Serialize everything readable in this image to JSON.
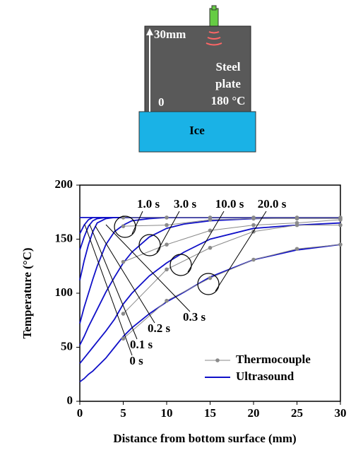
{
  "diagram": {
    "thickness_label": "30mm",
    "zero_label": "0",
    "plate_label_1": "Steel",
    "plate_label_2": "plate",
    "temp_label": "180 °C",
    "ice_label": "Ice"
  },
  "chart_data": {
    "type": "line",
    "y_label": "Temperature (°C)",
    "x_label": "Distance from bottom surface (mm)",
    "xlim": [
      0,
      30
    ],
    "xticks": [
      0,
      5,
      10,
      15,
      20,
      25,
      30
    ],
    "ylim": [
      0,
      200
    ],
    "yticks": [
      0,
      50,
      100,
      150,
      200
    ],
    "legend": "lower-right",
    "annotations": [
      "1.0 s",
      "3.0 s",
      "10.0 s",
      "20.0 s",
      "0.3 s",
      "0.2 s",
      "0.1 s",
      "0 s"
    ],
    "thermocouple": {
      "name": "Thermocouple",
      "color": "#8a8a8a",
      "x": [
        5,
        10,
        15,
        20,
        25,
        30
      ],
      "series": [
        {
          "values": [
            170,
            170,
            170,
            170,
            170,
            170
          ]
        },
        {
          "values": [
            162,
            163,
            168,
            169,
            169,
            169
          ]
        },
        {
          "values": [
            129,
            145,
            158,
            163,
            165,
            168
          ]
        },
        {
          "values": [
            81,
            122,
            142,
            157,
            163,
            163
          ]
        },
        {
          "values": [
            58,
            93,
            114,
            131,
            141,
            145
          ]
        }
      ]
    },
    "ultrasound": {
      "name": "Ultrasound",
      "color": "#1010c8",
      "x": [
        0,
        0.5,
        1,
        1.5,
        2,
        3,
        4,
        5,
        6,
        8,
        10,
        12,
        15,
        20,
        25,
        30
      ],
      "series": [
        {
          "values": [
            170,
            170,
            170,
            170,
            170,
            170,
            170,
            170,
            170,
            170,
            170,
            170,
            170,
            170,
            170,
            170
          ]
        },
        {
          "values": [
            155,
            163,
            168,
            170,
            170,
            170,
            170,
            170,
            170,
            170,
            170,
            170,
            170,
            170,
            170,
            170
          ]
        },
        {
          "values": [
            140,
            152,
            162,
            167,
            169,
            170,
            170,
            170,
            170,
            170,
            170,
            170,
            170,
            170,
            170,
            170
          ]
        },
        {
          "values": [
            112,
            130,
            145,
            157,
            165,
            169,
            170,
            170,
            170,
            170,
            170,
            170,
            170,
            170,
            170,
            170
          ]
        },
        {
          "values": [
            72,
            87,
            100,
            113,
            125,
            145,
            157,
            163,
            167,
            169,
            170,
            170,
            170,
            170,
            170,
            170
          ]
        },
        {
          "values": [
            52,
            60,
            69,
            77,
            85,
            101,
            115,
            128,
            138,
            152,
            160,
            164,
            167,
            169,
            170,
            170
          ]
        },
        {
          "values": [
            35,
            40,
            45,
            50,
            55,
            65,
            76,
            90,
            100,
            116,
            128,
            138,
            150,
            160,
            163,
            165
          ]
        },
        {
          "values": [
            18,
            21,
            25,
            28,
            32,
            40,
            50,
            60,
            68,
            81,
            92,
            101,
            115,
            131,
            140,
            145
          ]
        }
      ]
    }
  }
}
